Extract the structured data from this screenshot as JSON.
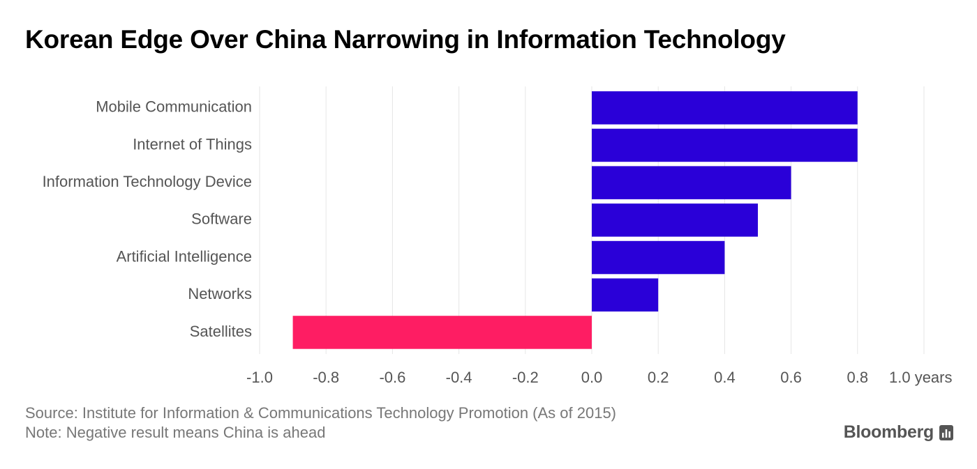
{
  "header": {
    "title": "Korean Edge Over China Narrowing in Information Technology"
  },
  "chart_data": {
    "type": "bar",
    "orientation": "horizontal",
    "title": "Korean Edge Over China Narrowing in Information Technology",
    "categories": [
      "Mobile Communication",
      "Internet of Things",
      "Information Technology Device",
      "Software",
      "Artificial Intelligence",
      "Networks",
      "Satellites"
    ],
    "values": [
      0.8,
      0.8,
      0.6,
      0.5,
      0.4,
      0.2,
      -0.9
    ],
    "xlim": [
      -1.0,
      1.0
    ],
    "xticks": [
      "-1.0",
      "-0.8",
      "-0.6",
      "-0.4",
      "-0.2",
      "0.0",
      "0.2",
      "0.4",
      "0.6",
      "0.8",
      "1.0 years"
    ],
    "grid": true,
    "colors": {
      "positive": "#2a00d8",
      "negative": "#fe1d63",
      "grid": "#e6e6e6"
    }
  },
  "footer": {
    "source": "Source: Institute for Information & Communications Technology Promotion (As of 2015)",
    "note": "Note: Negative result means China is ahead",
    "brand": "Bloomberg"
  }
}
